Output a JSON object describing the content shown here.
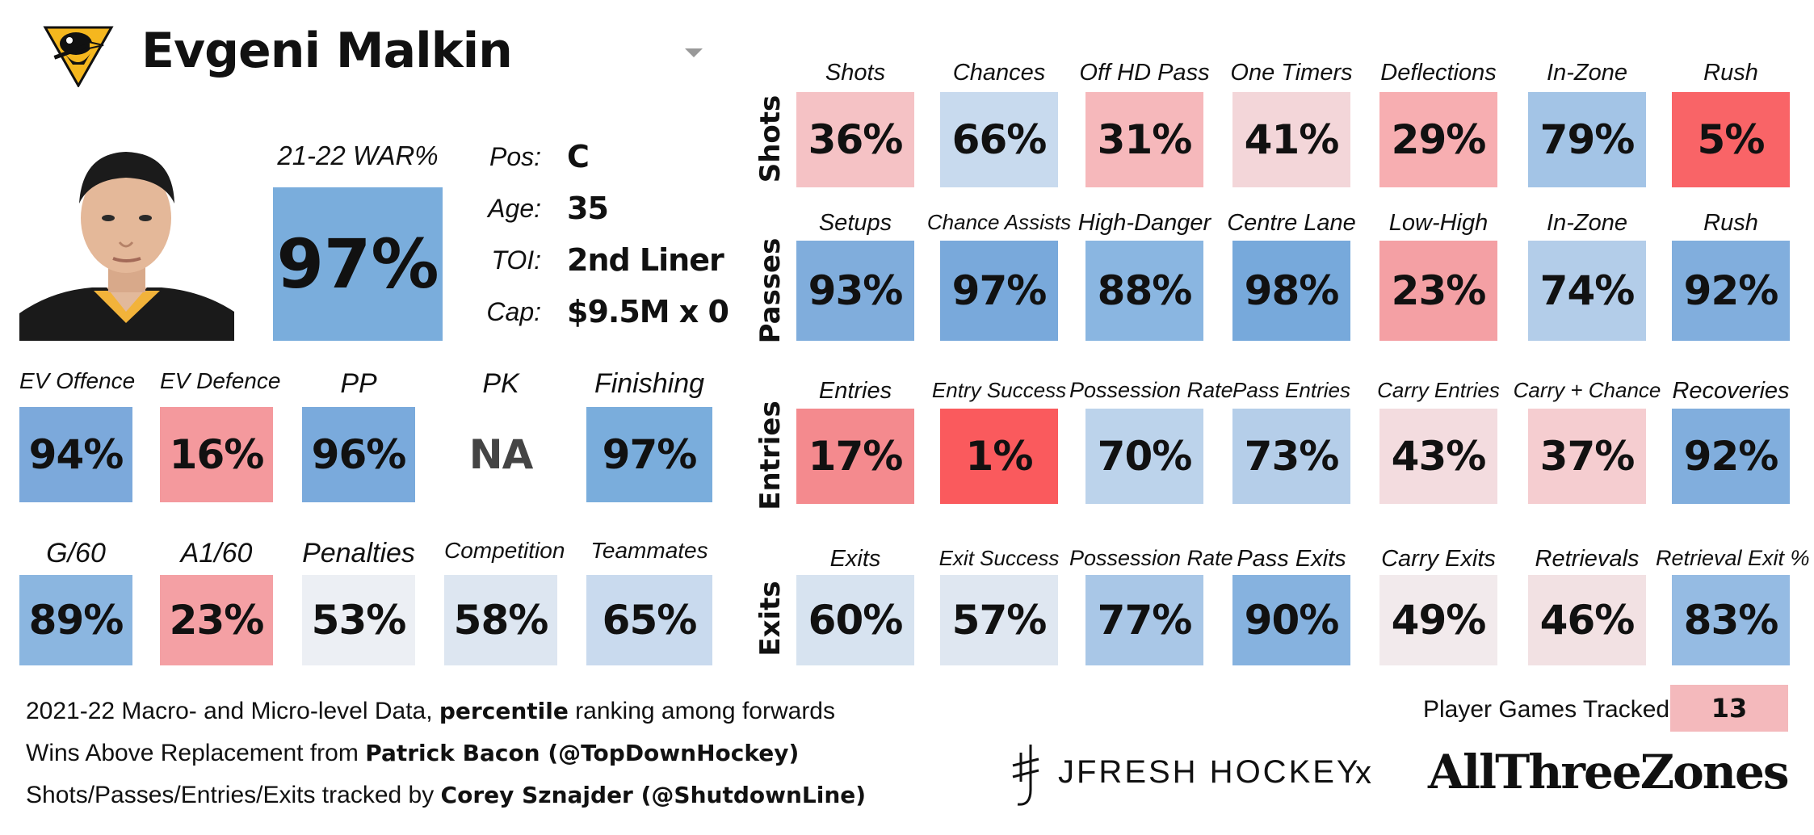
{
  "player": {
    "name": "Evgeni Malkin",
    "war_label": "21-22 WAR%",
    "war_value": "97%",
    "war_color": "#7aaddc",
    "info": [
      {
        "label": "Pos:",
        "value": "C"
      },
      {
        "label": "Age:",
        "value": "35"
      },
      {
        "label": "TOI:",
        "value": "2nd Liner"
      },
      {
        "label": "Cap:",
        "value": "$9.5M x 0"
      }
    ]
  },
  "macro": {
    "row1": [
      {
        "label": "EV Offence",
        "value": "94%",
        "color": "#7ca9db"
      },
      {
        "label": "EV Defence",
        "value": "16%",
        "color": "#f4999d"
      },
      {
        "label": "PP",
        "value": "96%",
        "color": "#7aaadc"
      },
      {
        "label": "PK",
        "value": "NA",
        "color": "#ffffff"
      },
      {
        "label": "Finishing",
        "value": "97%",
        "color": "#7aaddc"
      }
    ],
    "row2": [
      {
        "label": "G/60",
        "value": "89%",
        "color": "#8bb6e0"
      },
      {
        "label": "A1/60",
        "value": "23%",
        "color": "#f4a0a4"
      },
      {
        "label": "Penalties",
        "value": "53%",
        "color": "#eceff4"
      },
      {
        "label": "Competition",
        "value": "58%",
        "color": "#dde6f1"
      },
      {
        "label": "Teammates",
        "value": "65%",
        "color": "#c9daee"
      }
    ]
  },
  "micro": {
    "rows": [
      {
        "name": "Shots",
        "cells": [
          {
            "label": "Shots",
            "value": "36%",
            "color": "#f5c2c5"
          },
          {
            "label": "Chances",
            "value": "66%",
            "color": "#c8daee"
          },
          {
            "label": "Off HD Pass",
            "value": "31%",
            "color": "#f6b8bb"
          },
          {
            "label": "One Timers",
            "value": "41%",
            "color": "#f3d6d9"
          },
          {
            "label": "Deflections",
            "value": "29%",
            "color": "#f7aeb1"
          },
          {
            "label": "In-Zone",
            "value": "79%",
            "color": "#a3c4e6"
          },
          {
            "label": "Rush",
            "value": "5%",
            "color": "#f96467"
          }
        ]
      },
      {
        "name": "Passes",
        "cells": [
          {
            "label": "Setups",
            "value": "93%",
            "color": "#80addc"
          },
          {
            "label": "Chance Assists",
            "value": "97%",
            "color": "#79a9db"
          },
          {
            "label": "High-Danger",
            "value": "88%",
            "color": "#8ab6e1"
          },
          {
            "label": "Centre Lane",
            "value": "98%",
            "color": "#77a9db"
          },
          {
            "label": "Low-High",
            "value": "23%",
            "color": "#f4a0a4"
          },
          {
            "label": "In-Zone",
            "value": "74%",
            "color": "#b3cde9"
          },
          {
            "label": "Rush",
            "value": "92%",
            "color": "#81aedd"
          }
        ]
      },
      {
        "name": "Entries",
        "cells": [
          {
            "label": "Entries",
            "value": "17%",
            "color": "#f48a8e"
          },
          {
            "label": "Entry Success",
            "value": "1%",
            "color": "#fa5a5d"
          },
          {
            "label": "Possession Rate",
            "value": "70%",
            "color": "#bcd3eb"
          },
          {
            "label": "Pass Entries",
            "value": "73%",
            "color": "#b5cee9"
          },
          {
            "label": "Carry Entries",
            "value": "43%",
            "color": "#f3dcdf"
          },
          {
            "label": "Carry + Chance",
            "value": "37%",
            "color": "#f5cdd0"
          },
          {
            "label": "Recoveries",
            "value": "92%",
            "color": "#81aedd"
          }
        ]
      },
      {
        "name": "Exits",
        "cells": [
          {
            "label": "Exits",
            "value": "60%",
            "color": "#d7e3f0"
          },
          {
            "label": "Exit Success",
            "value": "57%",
            "color": "#dfe7f1"
          },
          {
            "label": "Possession Rate",
            "value": "77%",
            "color": "#a9c7e7"
          },
          {
            "label": "Pass Exits",
            "value": "90%",
            "color": "#86b2df"
          },
          {
            "label": "Carry Exits",
            "value": "49%",
            "color": "#f2eaec"
          },
          {
            "label": "Retrievals",
            "value": "46%",
            "color": "#f2e1e3"
          },
          {
            "label": "Retrieval Exit %",
            "value": "83%",
            "color": "#95bbe3"
          }
        ]
      }
    ]
  },
  "footer": {
    "line1": {
      "a": "2021-22 Macro- and Micro-level Data, ",
      "b": "percentile",
      "c": " ranking among forwards"
    },
    "line2": {
      "a": "Wins Above Replacement from ",
      "b": "Patrick Bacon (@TopDownHockey)"
    },
    "line3": {
      "a": "Shots/Passes/Entries/Exits tracked by ",
      "b": "Corey Sznajder (@ShutdownLine)"
    },
    "games_label": "Player Games Tracked:",
    "games_value": "13",
    "games_color": "#f4b9bc",
    "brand1": "JFRESH HOCKEY",
    "separator": "x",
    "brand2": "AllThreeZones"
  }
}
